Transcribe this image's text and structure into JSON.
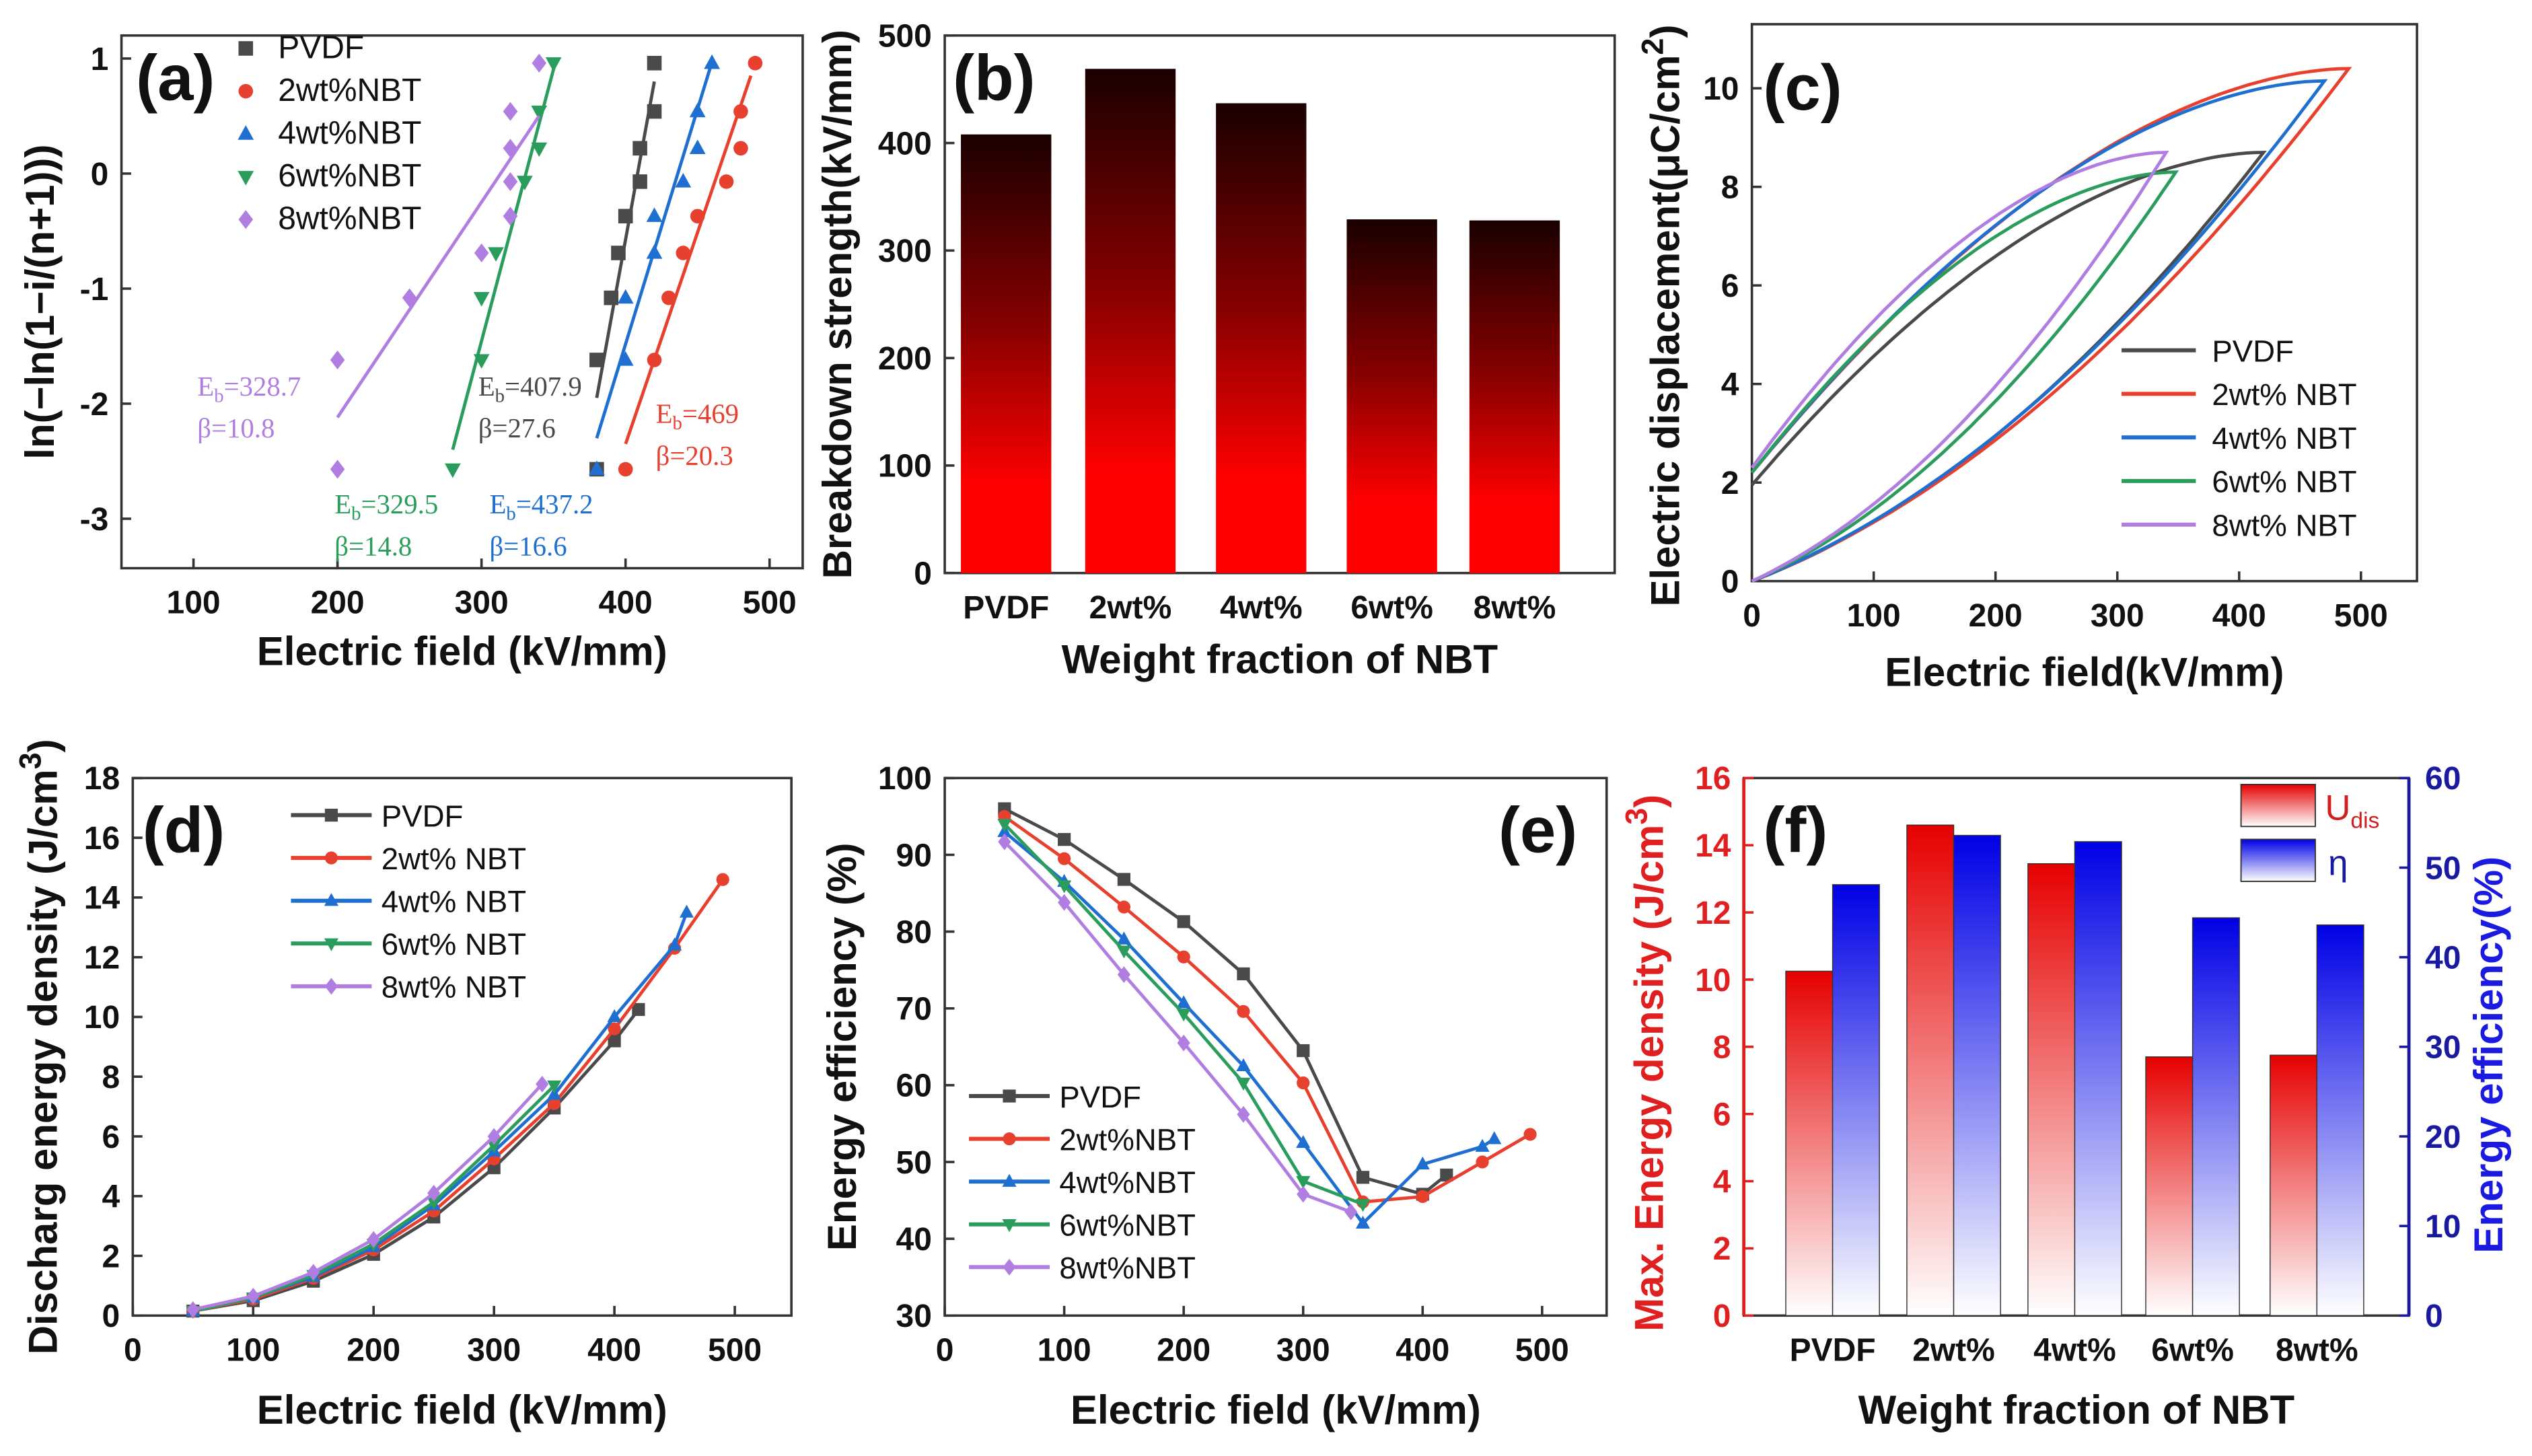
{
  "chart_data": [
    {
      "type": "scatter",
      "panel_label": "(a)",
      "xlabel": "Electric field (kV/mm)",
      "ylabel": "ln(−ln(1−i/(n+1)))",
      "xlim": [
        50,
        523
      ],
      "ylim": [
        -3.43,
        1.2
      ],
      "xticks": [
        100,
        200,
        300,
        400,
        500
      ],
      "yticks": [
        -3,
        -2,
        -1,
        0,
        1
      ],
      "legend_position": "top-left",
      "series": [
        {
          "name": "PVDF",
          "color": "#4a4a4a",
          "marker": "square",
          "points": [
            [
              380,
              -2.57
            ],
            [
              380,
              -1.62
            ],
            [
              390,
              -1.08
            ],
            [
              395,
              -0.69
            ],
            [
              400,
              -0.37
            ],
            [
              410,
              -0.07
            ],
            [
              410,
              0.22
            ],
            [
              420,
              0.54
            ],
            [
              420,
              0.96
            ]
          ],
          "fit": [
            [
              380,
              -1.95
            ],
            [
              420,
              0.8
            ]
          ],
          "annotation": {
            "symbol": "E",
            "subscript": "b",
            "value": "=407.9",
            "beta": "β=27.6"
          }
        },
        {
          "name": "2wt%NBT",
          "color": "#e8402f",
          "marker": "circle",
          "points": [
            [
              400,
              -2.57
            ],
            [
              420,
              -1.62
            ],
            [
              430,
              -1.08
            ],
            [
              440,
              -0.69
            ],
            [
              450,
              -0.37
            ],
            [
              470,
              -0.07
            ],
            [
              480,
              0.22
            ],
            [
              480,
              0.54
            ],
            [
              490,
              0.96
            ]
          ],
          "fit": [
            [
              400,
              -2.35
            ],
            [
              487,
              0.85
            ]
          ],
          "annotation": {
            "symbol": "E",
            "subscript": "b",
            "value": "=469",
            "beta": "β=20.3"
          }
        },
        {
          "name": "4wt%NBT",
          "color": "#1f6fd1",
          "marker": "triangle-up",
          "points": [
            [
              380,
              -2.57
            ],
            [
              400,
              -1.62
            ],
            [
              400,
              -1.08
            ],
            [
              420,
              -0.69
            ],
            [
              420,
              -0.37
            ],
            [
              440,
              -0.07
            ],
            [
              450,
              0.22
            ],
            [
              450,
              0.54
            ],
            [
              460,
              0.96
            ]
          ],
          "fit": [
            [
              380,
              -2.3
            ],
            [
              460,
              0.97
            ]
          ],
          "annotation": {
            "symbol": "E",
            "subscript": "b",
            "value": "=437.2",
            "beta": "β=16.6"
          }
        },
        {
          "name": "6wt%NBT",
          "color": "#2a9d5c",
          "marker": "triangle-down",
          "points": [
            [
              280,
              -2.57
            ],
            [
              300,
              -1.62
            ],
            [
              300,
              -1.08
            ],
            [
              310,
              -0.69
            ],
            [
              330,
              -0.07
            ],
            [
              340,
              0.22
            ],
            [
              340,
              0.54
            ],
            [
              350,
              0.96
            ]
          ],
          "fit": [
            [
              280,
              -2.4
            ],
            [
              352,
              1.0
            ]
          ],
          "annotation": {
            "symbol": "E",
            "subscript": "b",
            "value": "=329.5",
            "beta": "β=14.8"
          }
        },
        {
          "name": "8wt%NBT",
          "color": "#b07ee0",
          "marker": "diamond",
          "points": [
            [
              200,
              -2.57
            ],
            [
              200,
              -1.62
            ],
            [
              250,
              -1.08
            ],
            [
              300,
              -0.69
            ],
            [
              320,
              -0.37
            ],
            [
              320,
              -0.07
            ],
            [
              320,
              0.22
            ],
            [
              320,
              0.54
            ],
            [
              340,
              0.96
            ]
          ],
          "fit": [
            [
              200,
              -2.12
            ],
            [
              340,
              0.5
            ]
          ],
          "annotation": {
            "symbol": "E",
            "subscript": "b",
            "value": "=328.7",
            "beta": "β=10.8"
          }
        }
      ]
    },
    {
      "type": "bar",
      "panel_label": "(b)",
      "xlabel": "Weight fraction of NBT",
      "ylabel": "Breakdown strength(kV/mm)",
      "categories": [
        "PVDF",
        "2wt%",
        "4wt%",
        "6wt%",
        "8wt%"
      ],
      "values": [
        408,
        469,
        437,
        329,
        328
      ],
      "ylim": [
        0,
        500
      ],
      "yticks": [
        0,
        100,
        200,
        300,
        400,
        500
      ],
      "colors": {
        "top": "#1a0000",
        "bottom": "#ff0000"
      }
    },
    {
      "type": "line",
      "panel_label": "(c)",
      "xlabel": "Electric field(kV/mm)",
      "ylabel": "Electric displacement(μC/cm",
      "ylabel_sup": "2",
      "ylabel_suffix": ")",
      "xlim": [
        0,
        546
      ],
      "ylim": [
        0,
        11.3
      ],
      "xticks": [
        0,
        100,
        200,
        300,
        400,
        500
      ],
      "yticks": [
        0,
        2,
        4,
        6,
        8,
        10
      ],
      "legend_position": "bottom-right",
      "series": [
        {
          "name": "PVDF",
          "color": "#4a4a4a",
          "max_field": 420,
          "max_displacement": 8.7,
          "remnant_displacement": 1.95
        },
        {
          "name": "2wt% NBT",
          "color": "#e8402f",
          "max_field": 490,
          "max_displacement": 10.4,
          "remnant_displacement": 2.2
        },
        {
          "name": "4wt% NBT",
          "color": "#1f6fd1",
          "max_field": 470,
          "max_displacement": 10.15,
          "remnant_displacement": 2.2
        },
        {
          "name": "6wt% NBT",
          "color": "#2a9d5c",
          "max_field": 348,
          "max_displacement": 8.3,
          "remnant_displacement": 2.2
        },
        {
          "name": "8wt% NBT",
          "color": "#b07ee0",
          "max_field": 340,
          "max_displacement": 8.7,
          "remnant_displacement": 2.3
        }
      ]
    },
    {
      "type": "line",
      "panel_label": "(d)",
      "xlabel": "Electric field (kV/mm)",
      "ylabel": "Discharg energy  density (J/cm",
      "ylabel_sup": "3",
      "ylabel_suffix": ")",
      "xlim": [
        0,
        547
      ],
      "ylim": [
        0,
        18
      ],
      "xticks": [
        0,
        100,
        200,
        300,
        400,
        500
      ],
      "yticks": [
        0,
        2,
        4,
        6,
        8,
        10,
        12,
        14,
        16,
        18
      ],
      "legend_position": "top-left",
      "series": [
        {
          "name": "PVDF",
          "color": "#4a4a4a",
          "marker": "square",
          "points": [
            [
              50,
              0.15
            ],
            [
              100,
              0.5
            ],
            [
              150,
              1.15
            ],
            [
              200,
              2.05
            ],
            [
              250,
              3.3
            ],
            [
              300,
              4.95
            ],
            [
              350,
              6.95
            ],
            [
              400,
              9.2
            ],
            [
              420,
              10.25
            ]
          ]
        },
        {
          "name": "2wt% NBT",
          "color": "#e8402f",
          "marker": "circle",
          "points": [
            [
              50,
              0.15
            ],
            [
              100,
              0.55
            ],
            [
              150,
              1.25
            ],
            [
              200,
              2.2
            ],
            [
              250,
              3.5
            ],
            [
              300,
              5.25
            ],
            [
              350,
              7.1
            ],
            [
              400,
              9.6
            ],
            [
              450,
              12.3
            ],
            [
              490,
              14.6
            ]
          ]
        },
        {
          "name": "4wt% NBT",
          "color": "#1f6fd1",
          "marker": "triangle-up",
          "points": [
            [
              50,
              0.15
            ],
            [
              100,
              0.6
            ],
            [
              150,
              1.3
            ],
            [
              200,
              2.3
            ],
            [
              250,
              3.7
            ],
            [
              300,
              5.5
            ],
            [
              350,
              7.4
            ],
            [
              400,
              10.0
            ],
            [
              450,
              12.4
            ],
            [
              460,
              13.5
            ]
          ]
        },
        {
          "name": "6wt% NBT",
          "color": "#2a9d5c",
          "marker": "triangle-down",
          "points": [
            [
              50,
              0.15
            ],
            [
              100,
              0.6
            ],
            [
              150,
              1.35
            ],
            [
              200,
              2.4
            ],
            [
              250,
              3.8
            ],
            [
              300,
              5.7
            ],
            [
              350,
              7.7
            ]
          ]
        },
        {
          "name": "8wt% NBT",
          "color": "#b07ee0",
          "marker": "diamond",
          "points": [
            [
              50,
              0.2
            ],
            [
              100,
              0.65
            ],
            [
              150,
              1.45
            ],
            [
              200,
              2.55
            ],
            [
              250,
              4.1
            ],
            [
              300,
              6.0
            ],
            [
              340,
              7.75
            ]
          ]
        }
      ]
    },
    {
      "type": "line",
      "panel_label": "(e)",
      "xlabel": "Electric field (kV/mm)",
      "ylabel": "Energy efficiency (%)",
      "xlim": [
        0,
        554
      ],
      "ylim": [
        30,
        100
      ],
      "xticks": [
        0,
        100,
        200,
        300,
        400,
        500
      ],
      "yticks": [
        30,
        40,
        50,
        60,
        70,
        80,
        90,
        100
      ],
      "legend_position": "bottom-left",
      "series": [
        {
          "name": "PVDF",
          "color": "#4a4a4a",
          "marker": "square",
          "points": [
            [
              50,
              96
            ],
            [
              100,
              92
            ],
            [
              150,
              86.8
            ],
            [
              200,
              81.3
            ],
            [
              250,
              74.5
            ],
            [
              300,
              64.5
            ],
            [
              350,
              48
            ],
            [
              400,
              45.8
            ],
            [
              420,
              48.3
            ]
          ]
        },
        {
          "name": "2wt%NBT",
          "color": "#e8402f",
          "marker": "circle",
          "points": [
            [
              50,
              95
            ],
            [
              100,
              89.5
            ],
            [
              150,
              83.2
            ],
            [
              200,
              76.7
            ],
            [
              250,
              69.6
            ],
            [
              300,
              60.3
            ],
            [
              350,
              44.8
            ],
            [
              400,
              45.5
            ],
            [
              450,
              50
            ],
            [
              490,
              53.6
            ]
          ]
        },
        {
          "name": "4wt%NBT",
          "color": "#1f6fd1",
          "marker": "triangle-up",
          "points": [
            [
              50,
              93
            ],
            [
              100,
              86.5
            ],
            [
              150,
              79
            ],
            [
              200,
              70.7
            ],
            [
              250,
              62.5
            ],
            [
              300,
              52.5
            ],
            [
              350,
              42
            ],
            [
              400,
              49.7
            ],
            [
              450,
              52
            ],
            [
              460,
              53
            ]
          ]
        },
        {
          "name": "6wt%NBT",
          "color": "#2a9d5c",
          "marker": "triangle-down",
          "points": [
            [
              50,
              94
            ],
            [
              100,
              86
            ],
            [
              150,
              77.5
            ],
            [
              200,
              69.3
            ],
            [
              250,
              60.3
            ],
            [
              300,
              47.5
            ],
            [
              350,
              44.5
            ]
          ]
        },
        {
          "name": "8wt%NBT",
          "color": "#b07ee0",
          "marker": "diamond",
          "points": [
            [
              50,
              91.7
            ],
            [
              100,
              83.8
            ],
            [
              150,
              74.4
            ],
            [
              200,
              65.5
            ],
            [
              250,
              56.2
            ],
            [
              300,
              45.8
            ],
            [
              340,
              43.5
            ]
          ]
        }
      ]
    },
    {
      "type": "bar",
      "panel_label": "(f)",
      "xlabel": "Weight fraction of NBT",
      "ylabel": "Max. Energy density (J/cm",
      "ylabel_sup": "3",
      "ylabel_suffix": ")",
      "ylabel_right": "Energy efficiency(%)",
      "categories": [
        "PVDF",
        "2wt%",
        "4wt%",
        "6wt%",
        "8wt%"
      ],
      "ylim": [
        0,
        16
      ],
      "ylim_right": [
        0,
        60
      ],
      "yticks": [
        0,
        2,
        4,
        6,
        8,
        10,
        12,
        14,
        16
      ],
      "yticks_right": [
        0,
        10,
        20,
        30,
        40,
        50,
        60
      ],
      "legend_position": "top-right",
      "series": [
        {
          "name": "U",
          "name_subscript": "dis",
          "axis": "left",
          "color": "#e60000",
          "values": [
            10.25,
            14.6,
            13.45,
            7.7,
            7.75
          ]
        },
        {
          "name": "η",
          "axis": "right",
          "color": "#0000e6",
          "values": [
            48.1,
            53.6,
            52.9,
            44.4,
            43.6
          ]
        }
      ],
      "axis_colors": {
        "left": "#e02020",
        "right": "#1a1aa0"
      }
    }
  ]
}
